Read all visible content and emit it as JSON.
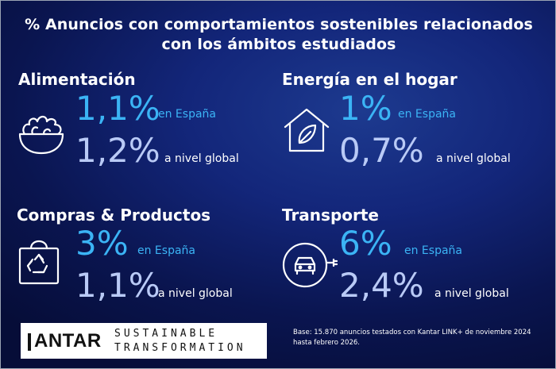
{
  "title": {
    "line1": "% Anuncios con comportamientos sostenibles relacionados",
    "line2": "con los ámbitos estudiados"
  },
  "sections": [
    {
      "title": "Alimentación",
      "icon": "salad-bowl-icon",
      "spain_value": "1,1%",
      "spain_label": "en España",
      "global_value": "1,2%",
      "global_label": "a nivel global"
    },
    {
      "title": "Energía en el hogar",
      "icon": "house-leaf-icon",
      "spain_value": "1%",
      "spain_label": "en España",
      "global_value": "0,7%",
      "global_label": "a nivel global"
    },
    {
      "title": "Compras & Productos",
      "icon": "recycle-bag-icon",
      "spain_value": "3%",
      "spain_label": "en España",
      "global_value": "1,1%",
      "global_label": "a nivel global"
    },
    {
      "title": "Transporte",
      "icon": "electric-car-icon",
      "spain_value": "6%",
      "spain_label": "en España",
      "global_value": "2,4%",
      "global_label": "a nivel global"
    }
  ],
  "logo": {
    "brand": "ANTAR",
    "line1": "SUSTAINABLE",
    "line2": "TRANSFORMATION"
  },
  "footnote": "Base: 15.870 anuncios testados con Kantar LINK+ de noviembre 2024 hasta febrero 2026.",
  "colors": {
    "background": "#0d1c66",
    "spain_value": "#3bb4f5",
    "global_value": "#b9caf6",
    "text": "#ffffff"
  }
}
